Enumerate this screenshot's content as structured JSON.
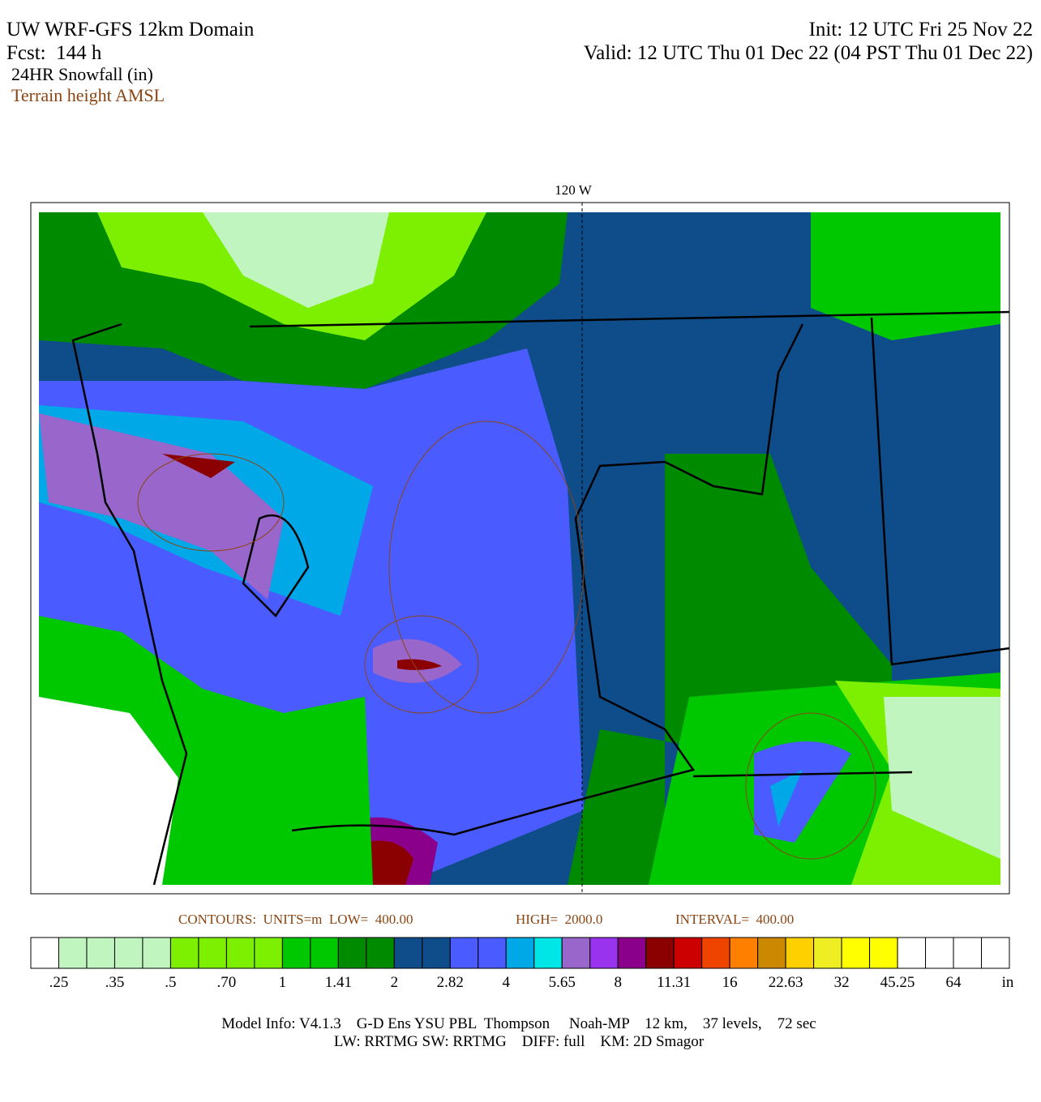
{
  "header": {
    "title": "UW WRF-GFS 12km Domain",
    "forecast": "Fcst:  144 h",
    "field": "24HR Snowfall (in)",
    "overlay": "Terrain height AMSL",
    "init": "Init: 12 UTC Fri 25 Nov 22",
    "valid": "Valid: 12 UTC Thu 01 Dec 22 (04 PST Thu 01 Dec 22)"
  },
  "map": {
    "meridian_label": "120 W"
  },
  "contours": {
    "units": "CONTOURS:  UNITS=m  LOW=  400.00",
    "high": "HIGH=  2000.0",
    "interval": "INTERVAL=  400.00"
  },
  "colorbar": {
    "colors": [
      "#ffffff",
      "#c0f5c0",
      "#c0f5c0",
      "#c0f5c0",
      "#c0f5c0",
      "#7cf000",
      "#7cf000",
      "#7cf000",
      "#7cf000",
      "#00c800",
      "#00c800",
      "#008a00",
      "#008a00",
      "#0f4c8a",
      "#0f4c8a",
      "#4a5cff",
      "#4a5cff",
      "#00a8e8",
      "#00e5e5",
      "#9966cc",
      "#9933ee",
      "#8b008b",
      "#8b0000",
      "#cc0000",
      "#ee4400",
      "#ff8000",
      "#cc8800",
      "#ffd000",
      "#eeee22",
      "#ffff00",
      "#ffff00",
      "#ffffff",
      "#ffffff",
      "#ffffff",
      "#ffffff"
    ],
    "labels": [
      ".25",
      ".35",
      ".5",
      ".70",
      "1",
      "1.41",
      "2",
      "2.82",
      "4",
      "5.65",
      "8",
      "11.31",
      "16",
      "22.63",
      "32",
      "45.25",
      "64"
    ],
    "unit": "in"
  },
  "model_info": [
    "Model Info: V4.1.3    G-D Ens YSU PBL  Thompson     Noah-MP    12 km,    37 levels,    72 sec",
    "LW: RRTMG SW: RRTMG    DIFF: full    KM: 2D Smagor"
  ]
}
